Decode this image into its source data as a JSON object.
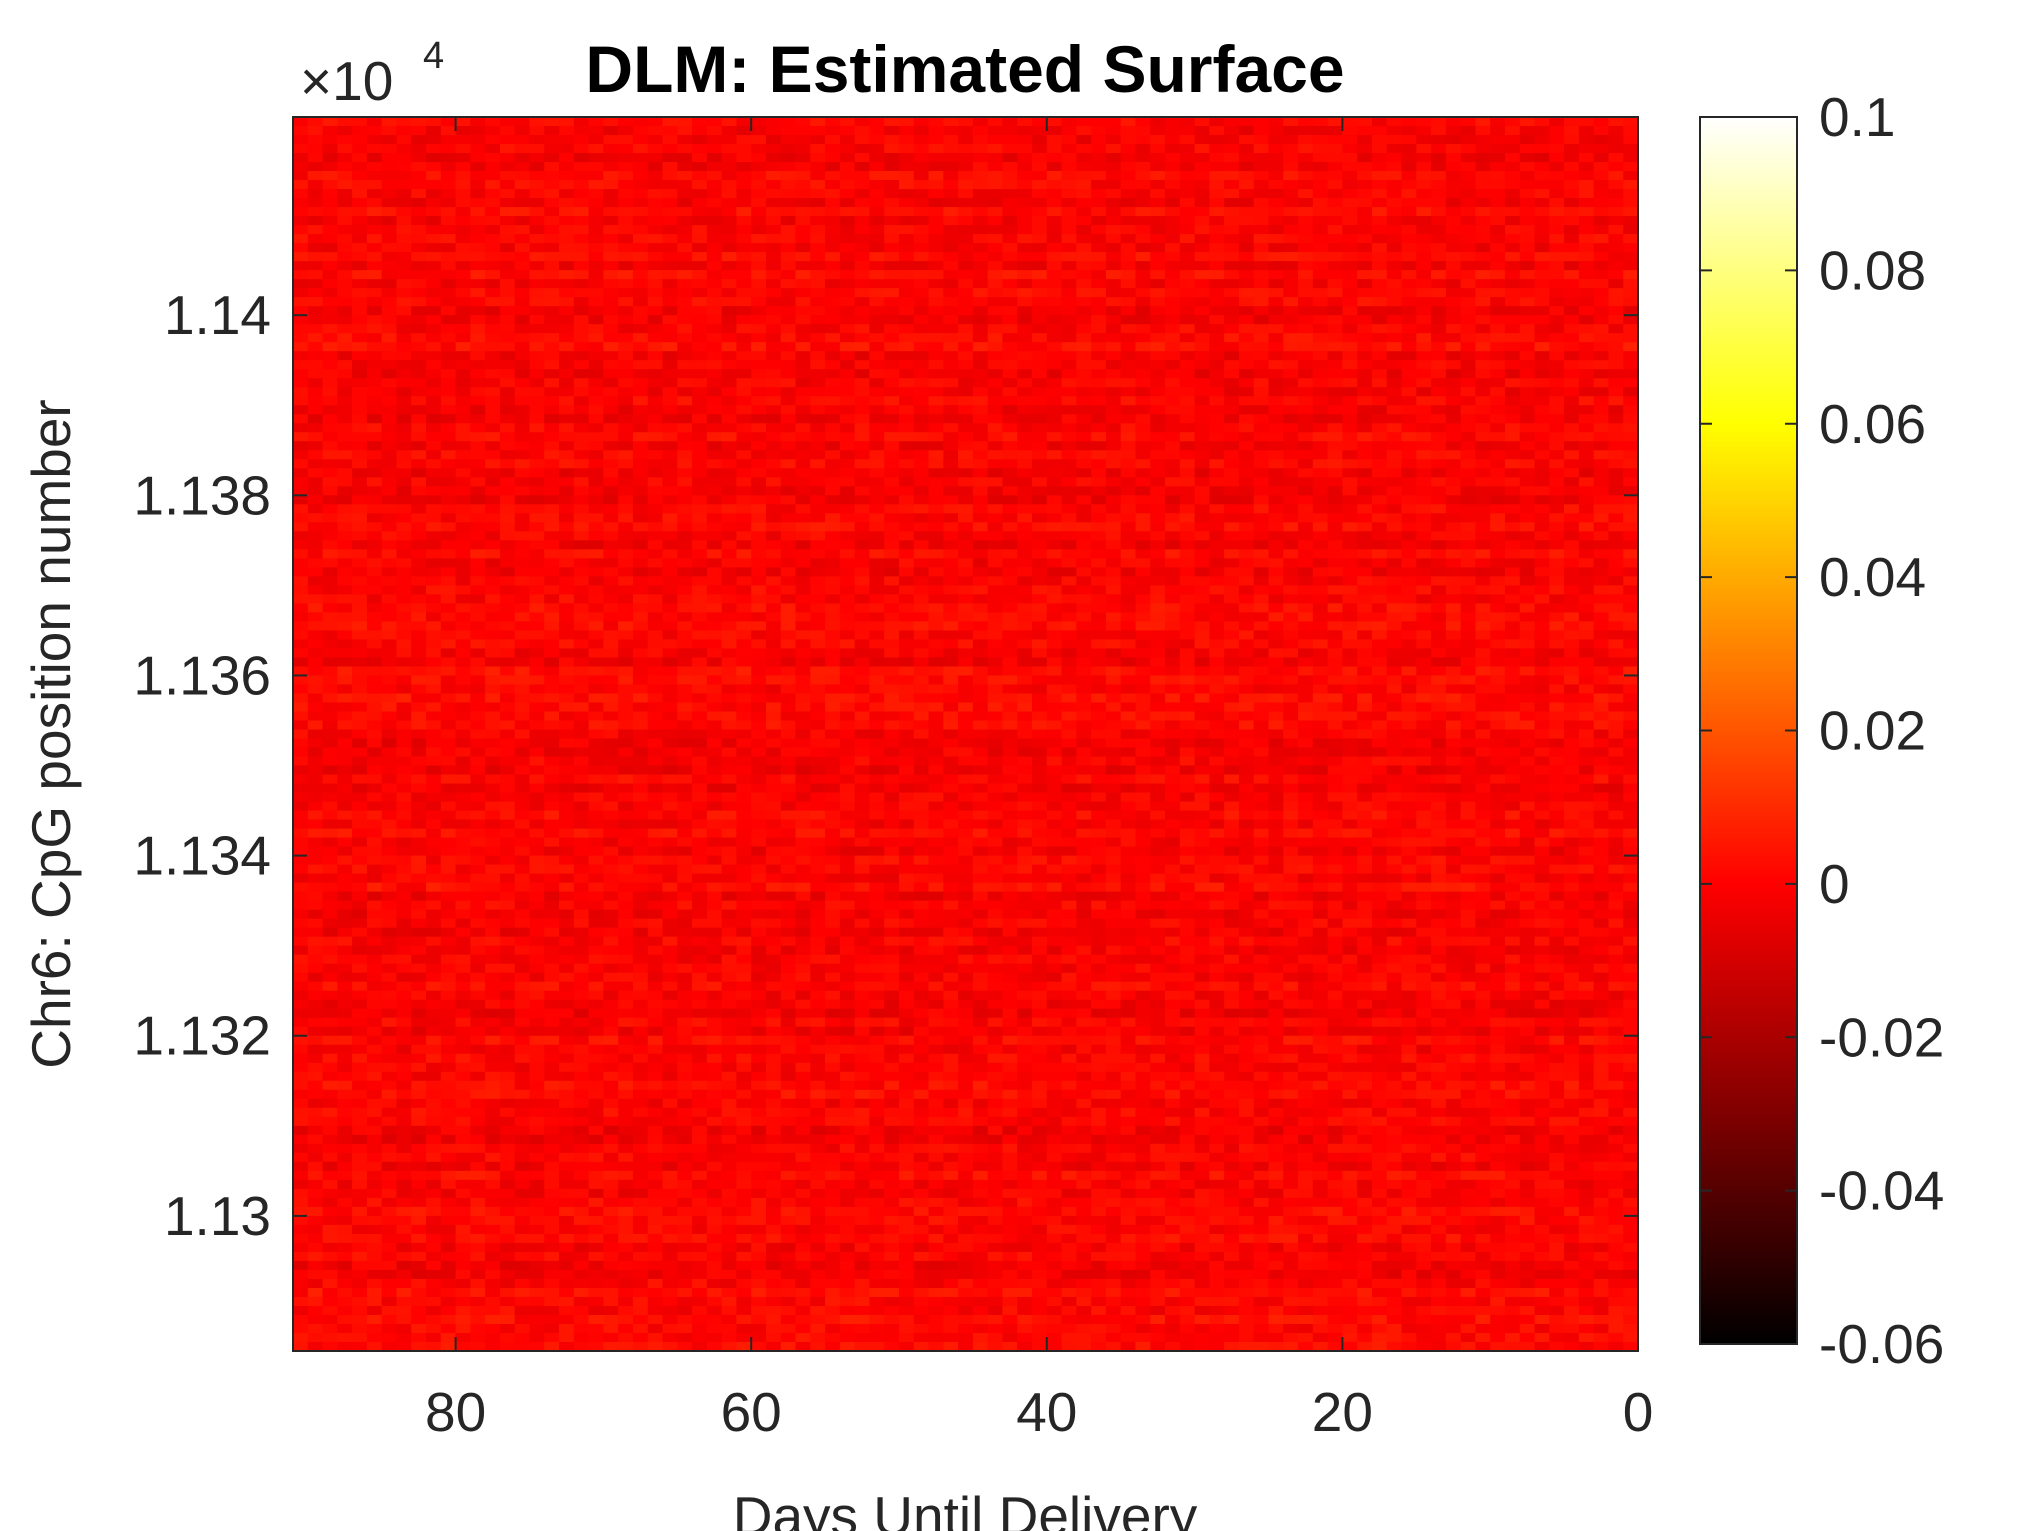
{
  "chart_data": {
    "type": "heatmap",
    "title": "DLM: Estimated Surface",
    "xlabel": "Days Until Delivery",
    "ylabel": "Chr6: CpG position number",
    "x_reversed": true,
    "xlim": [
      91,
      0
    ],
    "xticks": [
      80,
      60,
      40,
      20,
      0
    ],
    "xtick_labels": [
      "80",
      "60",
      "40",
      "20",
      "0"
    ],
    "ylim": [
      11285,
      11422
    ],
    "yticks": [
      11300,
      11320,
      11340,
      11360,
      11380,
      11400
    ],
    "ytick_labels": [
      "1.13",
      "1.132",
      "1.134",
      "1.136",
      "1.138",
      "1.14"
    ],
    "y_exponent_label": "×10",
    "y_exponent_power": "4",
    "colormap": "hot",
    "clim": [
      -0.06,
      0.1
    ],
    "colorbar_ticks": [
      0.1,
      0.08,
      0.06,
      0.04,
      0.02,
      0,
      -0.02,
      -0.04,
      -0.06
    ],
    "colorbar_tick_labels": [
      "0.1",
      "0.08",
      "0.06",
      "0.04",
      "0.02",
      "0",
      "-0.02",
      "-0.04",
      "-0.06"
    ],
    "surface_value_range": [
      -0.01,
      0.01
    ],
    "surface_typical_value": 0.0,
    "grid": false
  }
}
